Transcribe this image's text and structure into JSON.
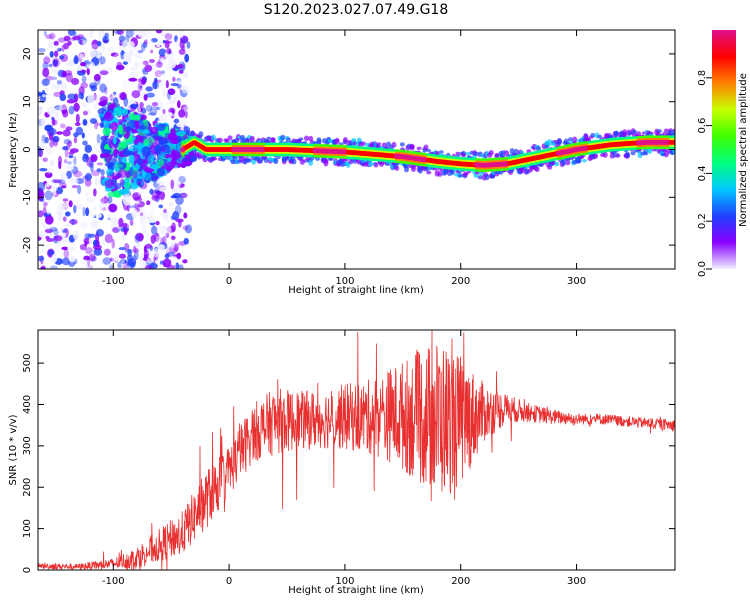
{
  "title": "S120.2023.027.07.49.G18",
  "chart_data": [
    {
      "type": "heatmap",
      "xlabel": "Height of straight line (km)",
      "ylabel": "Frequency (Hz)",
      "xlim": [
        -165,
        385
      ],
      "ylim": [
        -25,
        25
      ],
      "xticks": [
        -100,
        0,
        100,
        200,
        300
      ],
      "yticks": [
        -20,
        -10,
        0,
        10,
        20
      ],
      "colorbar": {
        "label": "Normalized spectral amplitude",
        "range": [
          0,
          1
        ],
        "ticks": [
          "0.0",
          "0.2",
          "0.4",
          "0.6",
          "0.8"
        ],
        "colors": [
          "#f0f0ff",
          "#8a00ff",
          "#2040ff",
          "#00c8ff",
          "#00ff80",
          "#40ff00",
          "#c8ff00",
          "#ff8000",
          "#ff0000",
          "#e0108a"
        ]
      },
      "ridge": {
        "x": [
          -40,
          -30,
          -20,
          0,
          50,
          100,
          150,
          180,
          200,
          220,
          240,
          260,
          280,
          300,
          330,
          360,
          385
        ],
        "frequency": [
          0,
          1.5,
          0,
          0,
          0,
          -0.5,
          -1.5,
          -2.5,
          -3,
          -3.3,
          -3,
          -2,
          -1,
          0,
          1,
          1.5,
          1.5
        ]
      }
    },
    {
      "type": "line",
      "xlabel": "Height of straight line (km)",
      "ylabel": "SNR (10 * v/v)",
      "xlim": [
        -165,
        385
      ],
      "ylim": [
        0,
        580
      ],
      "xticks": [
        -100,
        0,
        100,
        200,
        300
      ],
      "yticks": [
        0,
        100,
        200,
        300,
        400,
        500
      ],
      "series": [
        {
          "color": "#e83030",
          "envelope": {
            "x": [
              -165,
              -130,
              -100,
              -80,
              -60,
              -40,
              -20,
              0,
              20,
              40,
              60,
              80,
              100,
              120,
              140,
              160,
              180,
              200,
              220,
              240,
              260,
              280,
              300,
              320,
              340,
              360,
              385
            ],
            "mean": [
              10,
              8,
              15,
              30,
              60,
              90,
              170,
              240,
              330,
              360,
              360,
              365,
              370,
              370,
              375,
              370,
              365,
              360,
              380,
              390,
              380,
              370,
              365,
              365,
              360,
              355,
              350
            ],
            "spread": [
              8,
              8,
              15,
              30,
              45,
              60,
              80,
              70,
              80,
              90,
              80,
              80,
              90,
              100,
              130,
              170,
              220,
              180,
              80,
              40,
              25,
              20,
              15,
              15,
              15,
              15,
              15
            ]
          }
        }
      ]
    }
  ]
}
